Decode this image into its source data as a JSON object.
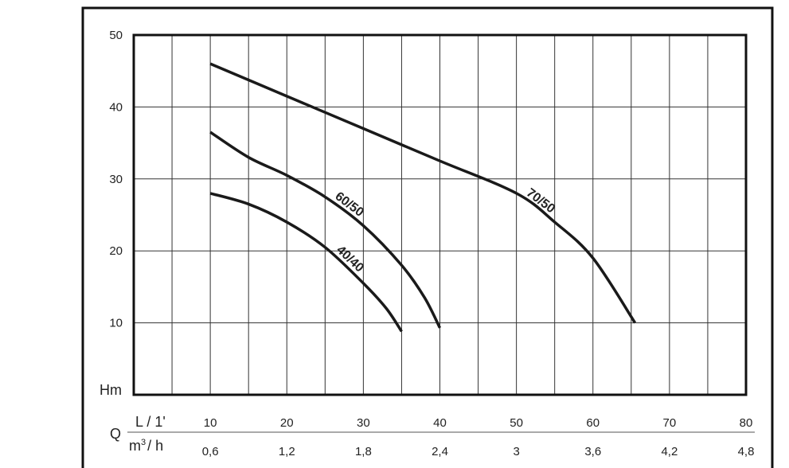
{
  "chart_data": {
    "type": "line",
    "title": "",
    "ylabel": "Hm",
    "xlabel": "Q",
    "x_unit_primary": "L / 1'",
    "x_unit_secondary_prefix": "m",
    "x_unit_secondary_sup": "3",
    "x_unit_secondary_suffix": "/ h",
    "xlim": [
      0,
      80
    ],
    "ylim": [
      0,
      50
    ],
    "grid": true,
    "x_ticks": [
      "10",
      "20",
      "30",
      "40",
      "50",
      "60",
      "70",
      "80"
    ],
    "x_ticks_secondary": [
      "0,6",
      "1,2",
      "1,8",
      "2,4",
      "3",
      "3,6",
      "4,2",
      "4,8"
    ],
    "y_ticks": [
      "10",
      "20",
      "30",
      "40",
      "50"
    ],
    "series": [
      {
        "name": "70/50",
        "x": [
          10,
          20,
          30,
          40,
          50,
          55,
          60,
          65.5
        ],
        "y": [
          46,
          41.5,
          37,
          32.5,
          28,
          24,
          19,
          10
        ]
      },
      {
        "name": "60/50",
        "x": [
          10,
          15,
          20,
          25,
          30,
          35,
          38,
          40
        ],
        "y": [
          36.5,
          33,
          30.5,
          27.5,
          23.5,
          18,
          13.5,
          9.3
        ]
      },
      {
        "name": "40/40",
        "x": [
          10,
          15,
          20,
          25,
          30,
          33,
          35
        ],
        "y": [
          28,
          26.5,
          24,
          20.5,
          15.5,
          12,
          8.8
        ]
      }
    ]
  }
}
